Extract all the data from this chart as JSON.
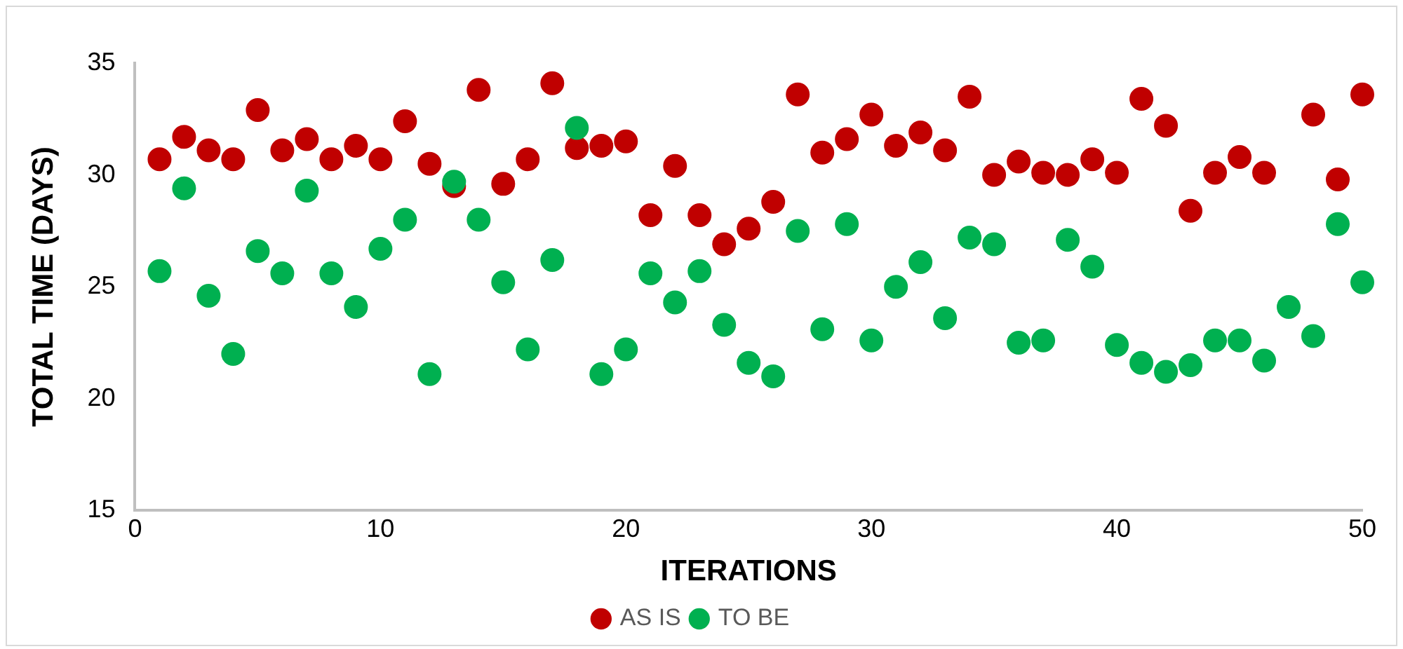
{
  "chart_data": {
    "type": "scatter",
    "xlabel": "ITERATIONS",
    "ylabel": "TOTAL TIME (DAYS)",
    "x": [
      1,
      2,
      3,
      4,
      5,
      6,
      7,
      8,
      9,
      10,
      11,
      12,
      13,
      14,
      15,
      16,
      17,
      18,
      19,
      20,
      21,
      22,
      23,
      24,
      25,
      26,
      27,
      28,
      29,
      30,
      31,
      32,
      33,
      34,
      35,
      36,
      37,
      38,
      39,
      40,
      41,
      42,
      43,
      44,
      45,
      46,
      47,
      48,
      49,
      50
    ],
    "series": [
      {
        "name": "AS IS",
        "color": "#c00000",
        "values": [
          30.7,
          31.7,
          31.1,
          30.7,
          32.9,
          31.1,
          31.6,
          30.7,
          31.3,
          30.7,
          32.4,
          30.5,
          29.5,
          33.8,
          29.6,
          30.7,
          34.1,
          31.2,
          31.3,
          31.5,
          28.2,
          30.4,
          28.2,
          26.9,
          27.6,
          28.8,
          33.6,
          31.0,
          31.6,
          32.7,
          31.3,
          31.9,
          31.1,
          33.5,
          30.0,
          30.6,
          30.1,
          30.0,
          30.7,
          30.1,
          33.4,
          32.2,
          28.4,
          30.1,
          30.8,
          30.1,
          null,
          32.7,
          29.8,
          33.6
        ]
      },
      {
        "name": "TO BE",
        "color": "#00b050",
        "values": [
          25.7,
          29.4,
          24.6,
          22.0,
          26.6,
          25.6,
          29.3,
          25.6,
          24.1,
          26.7,
          28.0,
          21.1,
          29.7,
          28.0,
          25.2,
          22.2,
          26.2,
          32.1,
          21.1,
          22.2,
          25.6,
          24.3,
          25.7,
          23.3,
          21.6,
          21.0,
          27.5,
          23.1,
          27.8,
          22.6,
          25.0,
          26.1,
          23.6,
          27.2,
          26.9,
          22.5,
          22.6,
          27.1,
          25.9,
          22.4,
          21.6,
          21.2,
          21.5,
          22.6,
          22.6,
          21.7,
          24.1,
          22.8,
          27.8,
          25.2
        ]
      }
    ],
    "xlim": [
      0,
      50
    ],
    "xticks": [
      0,
      10,
      20,
      30,
      40,
      50
    ],
    "ylim": [
      15,
      35
    ],
    "yticks": [
      15,
      20,
      25,
      30,
      35
    ],
    "grid": false,
    "legend": "bottom",
    "marker": "circle"
  }
}
